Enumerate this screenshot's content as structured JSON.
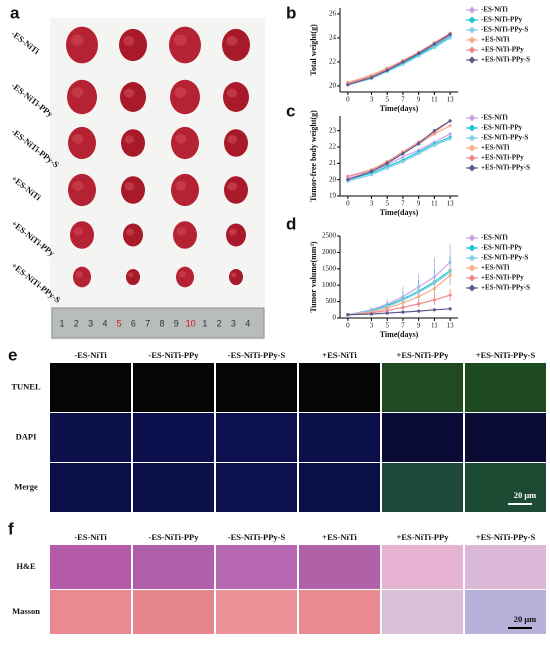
{
  "panel_a": {
    "label": "a",
    "rows": [
      "-ES-NiTi",
      "-ES-NiTi-PPy",
      "-ES-NiTi-PPy-S",
      "+ES-NiTi",
      "+ES-NiTi-PPy",
      "+ES-NiTi-PPy-S"
    ],
    "ruler": [
      "1",
      "2",
      "3",
      "4",
      "5",
      "6",
      "7",
      "8",
      "9",
      "10",
      "1",
      "2",
      "3",
      "4"
    ]
  },
  "chart_data": [
    {
      "label": "b",
      "type": "line",
      "xlabel": "Time(days)",
      "ylabel": "Total weight(g)",
      "x": [
        0,
        3,
        5,
        7,
        9,
        11,
        13
      ],
      "xlim": [
        -1,
        14
      ],
      "xticks": [
        0,
        3,
        5,
        7,
        9,
        11,
        13
      ],
      "ylim": [
        19.5,
        26.5
      ],
      "yticks": [
        20,
        22,
        24,
        26
      ],
      "series": [
        {
          "name": "-ES-NiTi",
          "color": "#c9a6e6",
          "values": [
            20.3,
            20.8,
            21.4,
            22.0,
            22.7,
            23.4,
            24.2
          ]
        },
        {
          "name": "-ES-NiTi-PPy",
          "color": "#1cc6cf",
          "values": [
            20.2,
            20.7,
            21.3,
            21.9,
            22.6,
            23.3,
            24.1
          ]
        },
        {
          "name": "-ES-NiTi-PPy-S",
          "color": "#86d2ea",
          "values": [
            20.1,
            20.6,
            21.2,
            21.8,
            22.5,
            23.2,
            24.0
          ]
        },
        {
          "name": "+ES-NiTi",
          "color": "#f4ae8c",
          "values": [
            20.3,
            20.9,
            21.5,
            22.1,
            22.8,
            23.5,
            24.3
          ]
        },
        {
          "name": "+ES-NiTi-PPy",
          "color": "#f08a8a",
          "values": [
            20.2,
            20.8,
            21.4,
            22.1,
            22.8,
            23.6,
            24.4
          ]
        },
        {
          "name": "+ES-NiTi-PPy-S",
          "color": "#5d5b8c",
          "values": [
            20.1,
            20.7,
            21.3,
            22.0,
            22.7,
            23.5,
            24.3
          ]
        }
      ]
    },
    {
      "label": "c",
      "type": "line",
      "xlabel": "Time(days)",
      "ylabel": "Tumor-free body weight(g)",
      "x": [
        0,
        3,
        5,
        7,
        9,
        11,
        13
      ],
      "xlim": [
        -1,
        14
      ],
      "xticks": [
        0,
        3,
        5,
        7,
        9,
        11,
        13
      ],
      "ylim": [
        19,
        23.9
      ],
      "yticks": [
        19,
        20,
        21,
        22,
        23
      ],
      "series": [
        {
          "name": "-ES-NiTi",
          "color": "#c9a6e6",
          "values": [
            20.1,
            20.5,
            20.9,
            21.4,
            21.8,
            22.3,
            22.8
          ]
        },
        {
          "name": "-ES-NiTi-PPy",
          "color": "#1cc6cf",
          "values": [
            20.0,
            20.4,
            20.8,
            21.2,
            21.7,
            22.2,
            22.6
          ]
        },
        {
          "name": "-ES-NiTi-PPy-S",
          "color": "#86d2ea",
          "values": [
            19.9,
            20.3,
            20.7,
            21.1,
            21.6,
            22.1,
            22.5
          ]
        },
        {
          "name": "+ES-NiTi",
          "color": "#f4ae8c",
          "values": [
            20.2,
            20.6,
            21.1,
            21.6,
            22.2,
            22.8,
            23.3
          ]
        },
        {
          "name": "+ES-NiTi-PPy",
          "color": "#f08a8a",
          "values": [
            20.2,
            20.6,
            21.1,
            21.7,
            22.3,
            22.9,
            23.6
          ]
        },
        {
          "name": "+ES-NiTi-PPy-S",
          "color": "#5d5b8c",
          "values": [
            20.0,
            20.5,
            21.0,
            21.6,
            22.2,
            23.0,
            23.6
          ]
        }
      ]
    },
    {
      "label": "d",
      "type": "line",
      "xlabel": "Time(days)",
      "ylabel": "Tumor volume(mm³)",
      "x": [
        0,
        3,
        5,
        7,
        9,
        11,
        13
      ],
      "xlim": [
        -1,
        14
      ],
      "xticks": [
        0,
        3,
        5,
        7,
        9,
        11,
        13
      ],
      "ylim": [
        0,
        2500
      ],
      "yticks": [
        0,
        500,
        1000,
        1500,
        2000,
        2500
      ],
      "series": [
        {
          "name": "-ES-NiTi",
          "color": "#c9a6e6",
          "values": [
            100,
            250,
            420,
            650,
            950,
            1250,
            1700
          ],
          "errors": [
            20,
            80,
            150,
            300,
            400,
            600,
            550
          ]
        },
        {
          "name": "-ES-NiTi-PPy",
          "color": "#1cc6cf",
          "values": [
            100,
            220,
            380,
            580,
            820,
            1100,
            1450
          ],
          "errors": [
            20,
            60,
            120,
            200,
            300,
            400,
            450
          ]
        },
        {
          "name": "-ES-NiTi-PPy-S",
          "color": "#86d2ea",
          "values": [
            100,
            210,
            350,
            540,
            780,
            1050,
            1400
          ],
          "errors": [
            20,
            50,
            100,
            180,
            250,
            300,
            350
          ]
        },
        {
          "name": "+ES-NiTi",
          "color": "#f4ae8c",
          "values": [
            100,
            180,
            300,
            460,
            650,
            900,
            1300
          ],
          "errors": [
            20,
            50,
            90,
            150,
            200,
            280,
            300
          ]
        },
        {
          "name": "+ES-NiTi-PPy",
          "color": "#f08a8a",
          "values": [
            100,
            150,
            230,
            320,
            430,
            550,
            700
          ],
          "errors": [
            20,
            40,
            60,
            80,
            120,
            150,
            180
          ]
        },
        {
          "name": "+ES-NiTi-PPy-S",
          "color": "#5d5b8c",
          "values": [
            100,
            120,
            150,
            180,
            210,
            250,
            280
          ],
          "errors": [
            10,
            20,
            30,
            40,
            40,
            50,
            50
          ]
        }
      ]
    }
  ],
  "panel_e": {
    "label": "e",
    "columns": [
      "-ES-NiTi",
      "-ES-NiTi-PPy",
      "-ES-NiTi-PPy-S",
      "+ES-NiTi",
      "+ES-NiTi-PPy",
      "+ES-NiTi-PPy-S"
    ],
    "rows": [
      "TUNEL",
      "DAPI",
      "Merge"
    ],
    "scale_bar": "20 μm"
  },
  "panel_f": {
    "label": "f",
    "columns": [
      "-ES-NiTi",
      "-ES-NiTi-PPy",
      "-ES-NiTi-PPy-S",
      "+ES-NiTi",
      "+ES-NiTi-PPy",
      "+ES-NiTi-PPy-S"
    ],
    "rows": [
      "H&E",
      "Masson"
    ],
    "scale_bar": "20 μm"
  }
}
